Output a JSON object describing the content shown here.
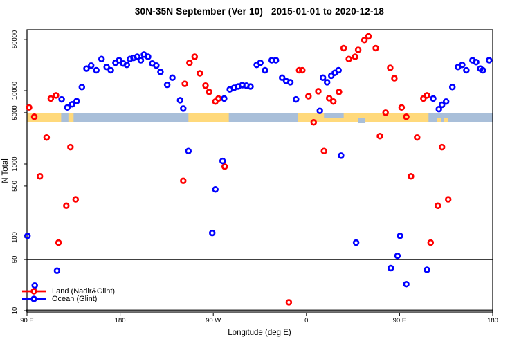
{
  "chart_data": {
    "type": "scatter",
    "title": "30N-35N September (Ver 10)   2015-01-01 to 2020-12-18",
    "xlabel": "Longitude (deg E)",
    "ylabel": "N Total",
    "x_axis": {
      "note": "x spans 450 cumulative degrees wrapping the globe: 90E to 180 to 90W to 0 to 90E to 180",
      "span_deg": 450,
      "ticks": [
        {
          "deg": 0,
          "label": "90 E"
        },
        {
          "deg": 90,
          "label": "180"
        },
        {
          "deg": 180,
          "label": "90 W"
        },
        {
          "deg": 270,
          "label": "0"
        },
        {
          "deg": 360,
          "label": "90 E"
        },
        {
          "deg": 450,
          "label": "180"
        }
      ]
    },
    "y_axis": {
      "scale": "log10",
      "range": [
        10,
        62000
      ],
      "ticks": [
        {
          "value": 10,
          "label": "10"
        },
        {
          "value": 50,
          "label": "50"
        },
        {
          "value": 100,
          "label": "100"
        },
        {
          "value": 500,
          "label": "500"
        },
        {
          "value": 1000,
          "label": "1000"
        },
        {
          "value": 5000,
          "label": "5000"
        },
        {
          "value": 10000,
          "label": "10000"
        },
        {
          "value": 50000,
          "label": "50000"
        }
      ]
    },
    "reference_lines": [
      {
        "n": 50,
        "weight": "thin",
        "color": "#000000"
      },
      {
        "n": 10,
        "weight": "thick",
        "color": "#3a3a3a"
      }
    ],
    "map_band": {
      "description": "land/ocean world strip drawn across the plot near N=4000",
      "n_top": 4700,
      "n_bottom": 3400,
      "ocean_color": "#a9bfd9",
      "land_color": "#ffd97b",
      "land_segments_deg": [
        [
          0,
          33
        ],
        [
          40,
          45
        ],
        [
          156,
          195
        ],
        [
          262,
          388
        ]
      ],
      "ocean_patches_deg": [
        [
          287,
          306
        ],
        [
          320,
          327
        ]
      ],
      "land_specks_deg": [
        [
          396,
          400
        ],
        [
          403,
          407
        ]
      ]
    },
    "series": [
      {
        "name": "Land (Nadir&Glint)",
        "color": "#ff0000",
        "points": [
          [
            2,
            5900
          ],
          [
            7,
            4400
          ],
          [
            23,
            7800
          ],
          [
            28,
            8600
          ],
          [
            19,
            2300
          ],
          [
            42,
            1700
          ],
          [
            12.5,
            680
          ],
          [
            47,
            330
          ],
          [
            38,
            270
          ],
          [
            30.5,
            85
          ],
          [
            152.5,
            12400
          ],
          [
            157,
            24000
          ],
          [
            162,
            29000
          ],
          [
            167,
            17200
          ],
          [
            172.5,
            11700
          ],
          [
            176,
            9600
          ],
          [
            182,
            7100
          ],
          [
            185,
            7800
          ],
          [
            151,
            590
          ],
          [
            191,
            920
          ],
          [
            253,
            13
          ],
          [
            263,
            19000
          ],
          [
            266,
            19000
          ],
          [
            272,
            8400
          ],
          [
            281.5,
            9800
          ],
          [
            292,
            7900
          ],
          [
            296,
            7100
          ],
          [
            301.5,
            9600
          ],
          [
            306,
            38000
          ],
          [
            311,
            27000
          ],
          [
            317,
            29000
          ],
          [
            320,
            36000
          ],
          [
            326,
            49000
          ],
          [
            330,
            55000
          ],
          [
            337,
            38000
          ],
          [
            277,
            3700
          ],
          [
            346.5,
            5000
          ],
          [
            351,
            20500
          ],
          [
            355,
            14800
          ],
          [
            287,
            1500
          ],
          [
            341,
            2400
          ],
          [
            362,
            5900
          ],
          [
            366.5,
            4400
          ],
          [
            371,
            680
          ],
          [
            377,
            2300
          ],
          [
            383,
            7800
          ],
          [
            386.5,
            8600
          ],
          [
            390,
            85
          ],
          [
            397,
            270
          ],
          [
            401,
            1700
          ],
          [
            407,
            330
          ]
        ]
      },
      {
        "name": "Ocean (Glint)",
        "color": "#0000ff",
        "points": [
          [
            33.5,
            7600
          ],
          [
            39,
            5900
          ],
          [
            43.5,
            6500
          ],
          [
            48,
            7200
          ],
          [
            53,
            11200
          ],
          [
            57.5,
            20000
          ],
          [
            62,
            22000
          ],
          [
            67,
            19000
          ],
          [
            72,
            27000
          ],
          [
            77,
            21000
          ],
          [
            81,
            19000
          ],
          [
            85.5,
            24000
          ],
          [
            89,
            26000
          ],
          [
            93,
            23500
          ],
          [
            96.5,
            22500
          ],
          [
            99.5,
            27000
          ],
          [
            103,
            28000
          ],
          [
            106.5,
            29000
          ],
          [
            110,
            26000
          ],
          [
            113,
            31000
          ],
          [
            117,
            29000
          ],
          [
            121,
            23500
          ],
          [
            125,
            22000
          ],
          [
            129,
            18000
          ],
          [
            135.5,
            12000
          ],
          [
            140.5,
            15000
          ],
          [
            148,
            7400
          ],
          [
            151,
            5700
          ],
          [
            0.5,
            105
          ],
          [
            29,
            35
          ],
          [
            7.5,
            22
          ],
          [
            156,
            1500
          ],
          [
            179,
            115
          ],
          [
            182,
            450
          ],
          [
            189,
            1100
          ],
          [
            190.5,
            7800
          ],
          [
            196,
            10400
          ],
          [
            200,
            10900
          ],
          [
            204,
            11400
          ],
          [
            208,
            11900
          ],
          [
            212,
            11700
          ],
          [
            216,
            11400
          ],
          [
            222,
            22500
          ],
          [
            225.5,
            24000
          ],
          [
            230,
            19000
          ],
          [
            236.5,
            26000
          ],
          [
            240.5,
            26000
          ],
          [
            246.5,
            15000
          ],
          [
            250.5,
            13500
          ],
          [
            254.5,
            13000
          ],
          [
            260,
            7600
          ],
          [
            283,
            5300
          ],
          [
            286,
            15000
          ],
          [
            290,
            13000
          ],
          [
            294,
            16000
          ],
          [
            297.5,
            17500
          ],
          [
            301,
            19000
          ],
          [
            303.5,
            1300
          ],
          [
            318,
            85
          ],
          [
            351.5,
            38
          ],
          [
            358,
            56
          ],
          [
            360.5,
            105
          ],
          [
            366.5,
            23
          ],
          [
            386.5,
            36
          ],
          [
            392.5,
            7800
          ],
          [
            398,
            5600
          ],
          [
            401,
            6400
          ],
          [
            405,
            7100
          ],
          [
            411,
            11200
          ],
          [
            416.5,
            21000
          ],
          [
            420.5,
            22500
          ],
          [
            424.5,
            19000
          ],
          [
            430.5,
            26000
          ],
          [
            434,
            24500
          ],
          [
            438,
            20000
          ],
          [
            440.5,
            19000
          ],
          [
            446.5,
            26000
          ]
        ]
      }
    ]
  },
  "legend": {
    "items": [
      {
        "label": "Land (Nadir&Glint)",
        "color": "#ff0000"
      },
      {
        "label": "Ocean (Glint)",
        "color": "#0000ff"
      }
    ]
  }
}
